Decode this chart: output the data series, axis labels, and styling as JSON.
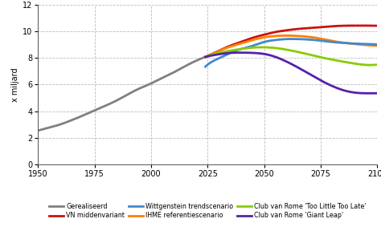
{
  "ylabel": "x miljard",
  "xlim": [
    1950,
    2100
  ],
  "ylim": [
    0,
    12
  ],
  "xticks": [
    1950,
    1975,
    2000,
    2025,
    2050,
    2075,
    2100
  ],
  "yticks": [
    0,
    2,
    4,
    6,
    8,
    10,
    12
  ],
  "background_color": "#ffffff",
  "grid_color": "#bbbbbb",
  "series": [
    {
      "name": "Gerealiseerd",
      "color": "#808080",
      "linewidth": 2.0,
      "years": [
        1950,
        1955,
        1960,
        1965,
        1970,
        1975,
        1980,
        1985,
        1990,
        1995,
        2000,
        2005,
        2010,
        2015,
        2020,
        2024
      ],
      "values": [
        2.55,
        2.77,
        3.02,
        3.34,
        3.69,
        4.07,
        4.43,
        4.83,
        5.3,
        5.72,
        6.09,
        6.51,
        6.92,
        7.38,
        7.8,
        8.08
      ]
    },
    {
      "name": "VN middenvariant",
      "color": "#cc1111",
      "linewidth": 2.0,
      "years": [
        2024,
        2030,
        2035,
        2040,
        2045,
        2050,
        2055,
        2060,
        2065,
        2070,
        2075,
        2080,
        2085,
        2090,
        2095,
        2100
      ],
      "values": [
        8.08,
        8.55,
        8.92,
        9.22,
        9.52,
        9.75,
        9.95,
        10.08,
        10.18,
        10.25,
        10.32,
        10.38,
        10.42,
        10.43,
        10.43,
        10.42
      ]
    },
    {
      "name": "IHME referentiescenario",
      "color": "#ff8000",
      "linewidth": 2.0,
      "years": [
        2024,
        2030,
        2035,
        2040,
        2045,
        2050,
        2055,
        2060,
        2065,
        2070,
        2075,
        2080,
        2085,
        2090,
        2095,
        2100
      ],
      "values": [
        8.08,
        8.52,
        8.85,
        9.1,
        9.35,
        9.55,
        9.65,
        9.68,
        9.65,
        9.58,
        9.45,
        9.28,
        9.15,
        9.05,
        8.97,
        8.92
      ]
    },
    {
      "name": "Wittgenstein trendscenario",
      "color": "#4488cc",
      "linewidth": 2.0,
      "years": [
        2024,
        2025,
        2030,
        2035,
        2040,
        2045,
        2050,
        2055,
        2060,
        2065,
        2070,
        2075,
        2080,
        2085,
        2090,
        2095,
        2100
      ],
      "values": [
        7.35,
        7.5,
        7.98,
        8.38,
        8.68,
        8.92,
        9.2,
        9.35,
        9.42,
        9.42,
        9.38,
        9.3,
        9.2,
        9.13,
        9.08,
        9.05,
        9.02
      ]
    },
    {
      "name": "Club van Rome 'Too Little Too Late'",
      "color": "#88cc00",
      "linewidth": 2.0,
      "years": [
        2024,
        2025,
        2030,
        2035,
        2040,
        2045,
        2050,
        2055,
        2060,
        2065,
        2070,
        2075,
        2080,
        2085,
        2090,
        2095,
        2100
      ],
      "values": [
        8.08,
        8.15,
        8.38,
        8.55,
        8.68,
        8.78,
        8.8,
        8.75,
        8.62,
        8.45,
        8.25,
        8.05,
        7.88,
        7.72,
        7.58,
        7.48,
        7.5
      ]
    },
    {
      "name": "Club van Rome 'Giant Leap'",
      "color": "#5522aa",
      "linewidth": 2.0,
      "years": [
        2024,
        2025,
        2030,
        2035,
        2040,
        2045,
        2050,
        2055,
        2060,
        2065,
        2070,
        2075,
        2080,
        2085,
        2090,
        2095,
        2100
      ],
      "values": [
        8.08,
        8.12,
        8.28,
        8.38,
        8.4,
        8.38,
        8.3,
        8.08,
        7.72,
        7.28,
        6.8,
        6.32,
        5.9,
        5.58,
        5.4,
        5.35,
        5.35
      ]
    }
  ],
  "legend_order": [
    {
      "name": "Gerealiseerd",
      "color": "#808080"
    },
    {
      "name": "VN middenvariant",
      "color": "#cc1111"
    },
    {
      "name": "Wittgenstein trendscenario",
      "color": "#4488cc"
    },
    {
      "name": "IHME referentiescenario",
      "color": "#ff8000"
    },
    {
      "name": "Club van Rome 'Too Little Too Late'",
      "color": "#88cc00"
    },
    {
      "name": "Club van Rome 'Giant Leap'",
      "color": "#5522aa"
    }
  ]
}
